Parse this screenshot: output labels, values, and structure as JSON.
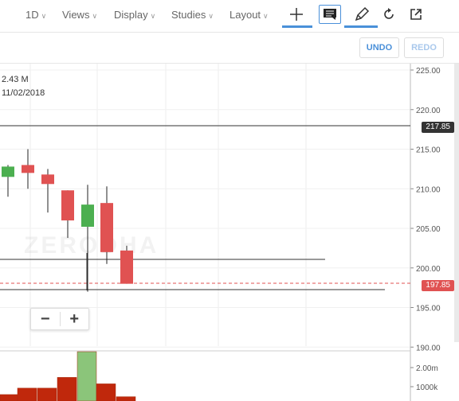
{
  "toolbar": {
    "interval": "1D",
    "views": "Views",
    "display": "Display",
    "studies": "Studies",
    "layout": "Layout"
  },
  "actions": {
    "undo": "UNDO",
    "redo": "REDO"
  },
  "legend": {
    "volume": "2.43 M",
    "date": "11/02/2018"
  },
  "watermark": "ZERODHA",
  "price_axis": [
    "225.00",
    "220.00",
    "215.00",
    "210.00",
    "205.00",
    "200.00",
    "195.00",
    "190.00"
  ],
  "volume_axis": [
    "2.00m",
    "1000k"
  ],
  "price_badges": {
    "high_line": "217.85",
    "last": "197.85"
  },
  "zoom": {
    "minus": "−",
    "plus": "+"
  },
  "colors": {
    "up": "#4caf50",
    "down": "#e05252",
    "accent": "#4a90d9",
    "vol_down": "#c0280c",
    "vol_up": "#8bc57a"
  },
  "chart_data": {
    "type": "candlestick",
    "y_range": [
      190,
      225
    ],
    "candles": [
      {
        "o": 211.5,
        "h": 213.0,
        "l": 209.0,
        "c": 212.8,
        "dir": "up"
      },
      {
        "o": 213.0,
        "h": 215.0,
        "l": 210.0,
        "c": 212.0,
        "dir": "down"
      },
      {
        "o": 211.8,
        "h": 212.5,
        "l": 207.0,
        "c": 210.6,
        "dir": "down"
      },
      {
        "o": 209.8,
        "h": 209.8,
        "l": 203.8,
        "c": 206.0,
        "dir": "down"
      },
      {
        "o": 205.2,
        "h": 210.5,
        "l": 197.0,
        "c": 208.0,
        "dir": "up"
      },
      {
        "o": 208.2,
        "h": 210.3,
        "l": 200.5,
        "c": 202.0,
        "dir": "down"
      },
      {
        "o": 202.2,
        "h": 202.8,
        "l": 198.0,
        "c": 198.0,
        "dir": "down"
      }
    ],
    "volumes": [
      {
        "v": 0.3,
        "dir": "down"
      },
      {
        "v": 0.6,
        "dir": "down"
      },
      {
        "v": 0.6,
        "dir": "down"
      },
      {
        "v": 1.1,
        "dir": "down"
      },
      {
        "v": 2.3,
        "dir": "up"
      },
      {
        "v": 0.8,
        "dir": "down"
      },
      {
        "v": 0.2,
        "dir": "down"
      }
    ],
    "vol_range": [
      0,
      2.3
    ]
  }
}
